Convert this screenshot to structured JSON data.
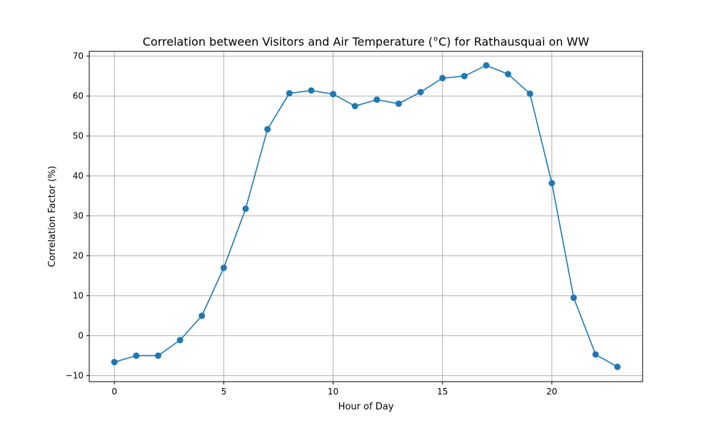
{
  "chart_data": {
    "type": "line",
    "title": "Correlation between Visitors and Air Temperature (°C) for Rathausquai on WW",
    "xlabel": "Hour of Day",
    "ylabel": "Correlation Factor (%)",
    "xlim": [
      -1.15,
      24.15
    ],
    "ylim": [
      -11.5,
      71.2
    ],
    "xticks": [
      0,
      5,
      10,
      15,
      20
    ],
    "yticks": [
      -10,
      0,
      10,
      20,
      30,
      40,
      50,
      60,
      70
    ],
    "grid": true,
    "color": "#1f77b4",
    "marker": "circle",
    "series": [
      {
        "x": [
          0,
          1,
          2,
          3,
          4,
          5,
          6,
          7,
          8,
          9,
          10,
          11,
          12,
          13,
          14,
          15,
          16,
          17,
          18,
          19,
          20,
          21,
          22,
          23
        ],
        "values": [
          -6.6,
          -5.0,
          -5.0,
          -1.1,
          5.0,
          17.0,
          31.8,
          51.7,
          60.7,
          61.4,
          60.5,
          57.5,
          59.1,
          58.1,
          61.0,
          64.5,
          65.0,
          67.7,
          65.5,
          60.6,
          38.2,
          9.5,
          -4.7,
          -7.8
        ]
      }
    ]
  }
}
